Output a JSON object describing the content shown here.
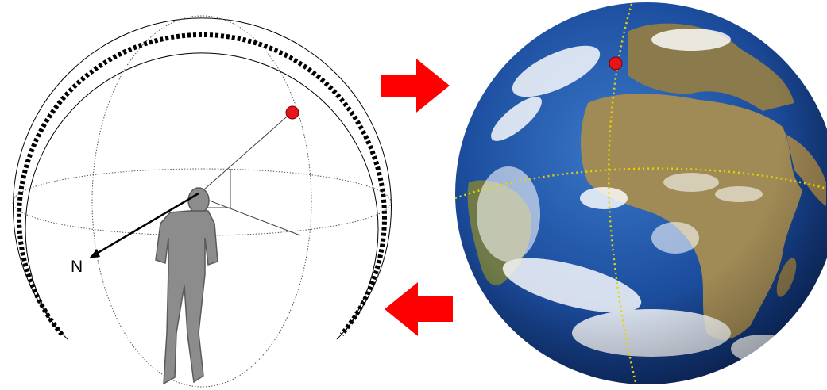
{
  "diagram": {
    "direction_label": "N"
  },
  "colors": {
    "arrow": "#ff0000",
    "marker": "#e8141c",
    "ocean": "#1d4fa0",
    "land": "#a08a55",
    "grid_line": "#e6d400",
    "person": "#8c8c8c",
    "dome_dots": "#000000"
  },
  "icons": {
    "forward_arrow": "arrow-right-icon",
    "back_arrow": "arrow-left-icon",
    "observer": "person-silhouette-icon",
    "globe": "earth-globe-icon"
  }
}
